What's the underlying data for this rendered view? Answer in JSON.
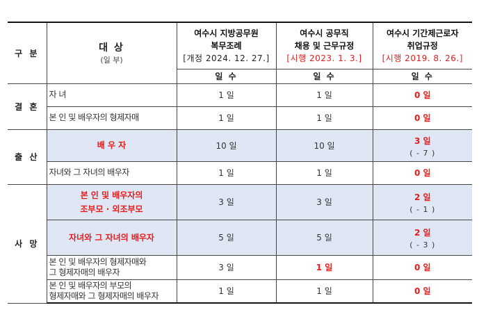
{
  "header": {
    "category": "구 분",
    "subject": "대 상",
    "subject_sub": "(일 부)",
    "col1_title_line1": "여수시 지방공무원",
    "col1_title_line2": "복무조례",
    "col1_date": "[개정 2024. 12. 27.]",
    "col2_title_line1": "여수시 공무직",
    "col2_title_line2": "채용 및 근무규정",
    "col2_date": "[시행 2023. 1. 3.]",
    "col3_title_line1": "여수시 기간제근로자",
    "col3_title_line2": "취업규정",
    "col3_date": "[시행 2019. 8. 26.]",
    "unit1": "일 수",
    "unit2": "일 수",
    "unit3": "일 수"
  },
  "colors": {
    "highlight": "#e81c1c",
    "shade": "#dfe7f5"
  },
  "categories": {
    "marriage": "결 혼",
    "birth": "출 산",
    "death": "사 망"
  },
  "rows": [
    {
      "target": "자 녀",
      "v1": "1 일",
      "v2": "1 일",
      "v3": "0 일",
      "diff": ""
    },
    {
      "target": "본 인 및 배우자의 형제자매",
      "v1": "1 일",
      "v2": "1 일",
      "v3": "0 일",
      "diff": ""
    },
    {
      "target": "배 우 자",
      "v1": "10 일",
      "v2": "10 일",
      "v3": "3 일",
      "diff": "( - 7 )"
    },
    {
      "target": "자녀와 그 자녀의 배우자",
      "v1": "1 일",
      "v2": "1 일",
      "v3": "0 일",
      "diff": ""
    },
    {
      "target_line1": "본 인 및 배우자의",
      "target_line2": "조부모 · 외조부모",
      "v1": "3 일",
      "v2": "3 일",
      "v3": "2 일",
      "diff": "( - 1 )"
    },
    {
      "target": "자녀와 그 자녀의 배우자",
      "v1": "5 일",
      "v2": "5 일",
      "v3": "2 일",
      "diff": "( - 3 )"
    },
    {
      "target_line1": "본 인 및 배우자의 형제자매와",
      "target_line2": "그 형제자매의 배우자",
      "v1": "3 일",
      "v2": "1 일",
      "v3": "0 일",
      "diff": ""
    },
    {
      "target_line1": "본 인 및 배우자의 부모의",
      "target_line2": "형제자매와 그 형제자매의 배우자",
      "v1": "1 일",
      "v2": "1 일",
      "v3": "0 일",
      "diff": ""
    }
  ]
}
